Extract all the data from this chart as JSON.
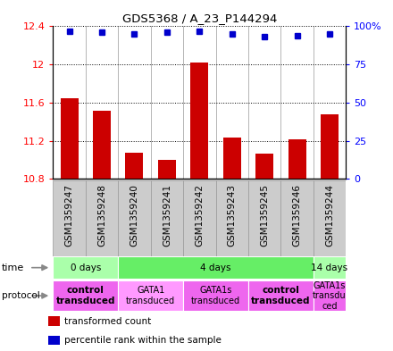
{
  "title": "GDS5368 / A_23_P144294",
  "samples": [
    "GSM1359247",
    "GSM1359248",
    "GSM1359240",
    "GSM1359241",
    "GSM1359242",
    "GSM1359243",
    "GSM1359245",
    "GSM1359246",
    "GSM1359244"
  ],
  "transformed_counts": [
    11.65,
    11.52,
    11.08,
    11.0,
    12.02,
    11.23,
    11.07,
    11.22,
    11.48
  ],
  "percentile_ranks": [
    97,
    96,
    95,
    96,
    97,
    95,
    93,
    94,
    95
  ],
  "ylim": [
    10.8,
    12.4
  ],
  "yticks_left": [
    10.8,
    11.2,
    11.6,
    12.0,
    12.4
  ],
  "ytick_labels_left": [
    "10.8",
    "11.2",
    "11.6",
    "12",
    "12.4"
  ],
  "yticks_right": [
    0,
    25,
    50,
    75,
    100
  ],
  "ytick_labels_right": [
    "0",
    "25",
    "50",
    "75",
    "100%"
  ],
  "bar_color": "#cc0000",
  "dot_color": "#0000cc",
  "bar_width": 0.55,
  "time_groups": [
    {
      "label": "0 days",
      "start": 0,
      "end": 2,
      "color": "#aaffaa"
    },
    {
      "label": "4 days",
      "start": 2,
      "end": 8,
      "color": "#66ee66"
    },
    {
      "label": "14 days",
      "start": 8,
      "end": 9,
      "color": "#aaffaa"
    }
  ],
  "protocol_groups": [
    {
      "label": "control\ntransduced",
      "start": 0,
      "end": 2,
      "color": "#ee66ee",
      "bold": true
    },
    {
      "label": "GATA1\ntransduced",
      "start": 2,
      "end": 4,
      "color": "#ff99ff",
      "bold": false
    },
    {
      "label": "GATA1s\ntransduced",
      "start": 4,
      "end": 6,
      "color": "#ee66ee",
      "bold": false
    },
    {
      "label": "control\ntransduced",
      "start": 6,
      "end": 8,
      "color": "#ee66ee",
      "bold": true
    },
    {
      "label": "GATA1s\ntransdu\nced",
      "start": 8,
      "end": 9,
      "color": "#ee66ee",
      "bold": false
    }
  ],
  "sample_bg_color": "#cccccc",
  "sample_border_color": "#999999",
  "legend_items": [
    {
      "color": "#cc0000",
      "label": "transformed count"
    },
    {
      "color": "#0000cc",
      "label": "percentile rank within the sample"
    }
  ],
  "fig_bg": "#ffffff"
}
